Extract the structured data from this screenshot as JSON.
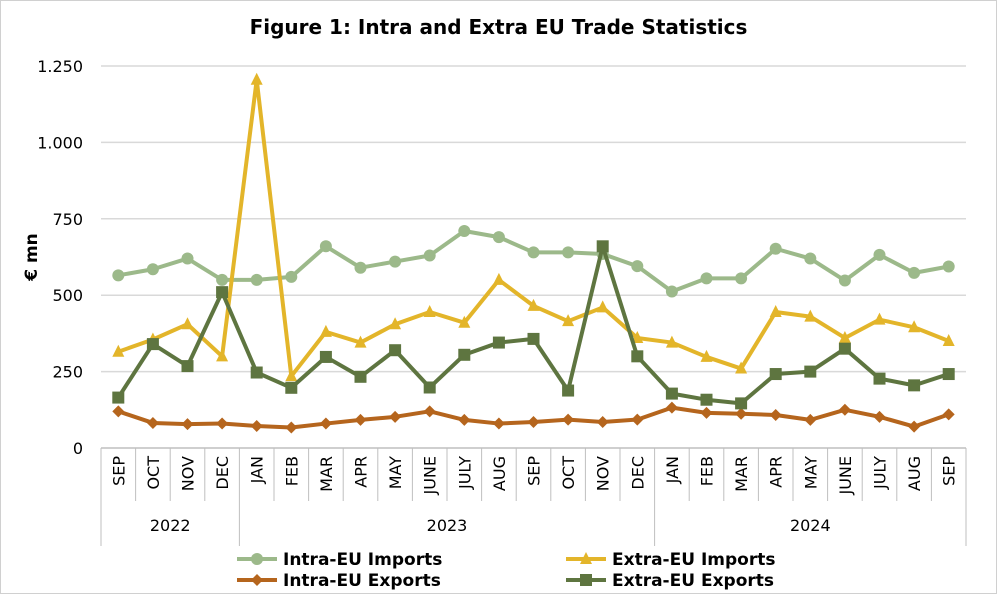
{
  "title": "Figure 1: Intra and Extra EU Trade Statistics",
  "chart_data": {
    "type": "line",
    "title": "Figure 1: Intra and Extra EU Trade Statistics",
    "ylabel": "€ mn",
    "xlabel": "",
    "ylim": [
      0,
      1250
    ],
    "yticks": [
      0,
      250,
      500,
      750,
      1000,
      1250
    ],
    "ytick_labels": [
      "0",
      "250",
      "500",
      "750",
      "1.000",
      "1.250"
    ],
    "grid": "horizontal",
    "legend_position": "bottom",
    "categories": [
      "SEP",
      "OCT",
      "NOV",
      "DEC",
      "JAN",
      "FEB",
      "MAR",
      "APR",
      "MAY",
      "JUNE",
      "JULY",
      "AUG",
      "SEP",
      "OCT",
      "NOV",
      "DEC",
      "JAN",
      "FEB",
      "MAR",
      "APR",
      "MAY",
      "JUNE",
      "JULY",
      "AUG",
      "SEP"
    ],
    "year_groups": [
      {
        "label": "2022",
        "start": 0,
        "end": 3
      },
      {
        "label": "2023",
        "start": 4,
        "end": 15
      },
      {
        "label": "2024",
        "start": 16,
        "end": 24
      }
    ],
    "series": [
      {
        "name": "Intra-EU Imports",
        "color": "#9cb98a",
        "marker": "circle",
        "values": [
          565,
          585,
          620,
          550,
          550,
          560,
          660,
          590,
          610,
          630,
          710,
          690,
          640,
          640,
          635,
          595,
          512,
          555,
          555,
          652,
          620,
          548,
          632,
          573,
          594
        ]
      },
      {
        "name": "Extra-EU Imports",
        "color": "#e3b52a",
        "marker": "triangle",
        "values": [
          315,
          355,
          405,
          300,
          1205,
          235,
          380,
          345,
          405,
          445,
          410,
          550,
          465,
          415,
          460,
          360,
          345,
          298,
          260,
          445,
          430,
          360,
          420,
          395,
          350
        ]
      },
      {
        "name": "Intra-EU Exports",
        "color": "#b5651d",
        "marker": "diamond",
        "values": [
          120,
          82,
          78,
          80,
          72,
          67,
          80,
          92,
          102,
          120,
          92,
          80,
          85,
          93,
          85,
          93,
          132,
          115,
          112,
          108,
          92,
          125,
          102,
          70,
          110
        ]
      },
      {
        "name": "Extra-EU Exports",
        "color": "#5e7540",
        "marker": "square",
        "values": [
          165,
          340,
          268,
          510,
          247,
          197,
          298,
          233,
          320,
          198,
          305,
          345,
          357,
          188,
          660,
          300,
          178,
          158,
          146,
          242,
          250,
          325,
          227,
          205,
          242
        ]
      }
    ]
  }
}
